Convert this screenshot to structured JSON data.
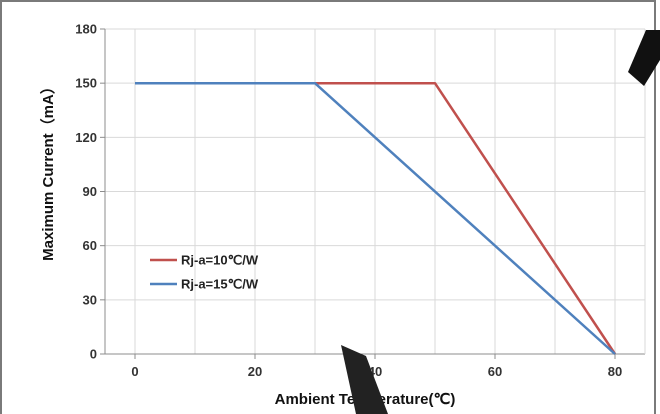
{
  "chart_data": {
    "type": "line",
    "title": "",
    "xlabel": "Ambient Temperature(℃)",
    "ylabel": "Maximum Current（mA）",
    "xlim": [
      -5,
      85
    ],
    "ylim": [
      0,
      180
    ],
    "x_ticks": [
      0,
      20,
      40,
      60,
      80
    ],
    "y_ticks": [
      0,
      30,
      60,
      90,
      120,
      150,
      180
    ],
    "x_tick_labels": [
      "0",
      "20",
      "40",
      "60",
      "80"
    ],
    "y_tick_labels": [
      "0",
      "30",
      "60",
      "90",
      "120",
      "150",
      "180"
    ],
    "grid": true,
    "legend_position": "left",
    "series": [
      {
        "name": "Rj-a=10℃/W",
        "color": "#c0504d",
        "x": [
          0,
          50,
          80
        ],
        "y": [
          150,
          150,
          0
        ]
      },
      {
        "name": "Rj-a=15℃/W",
        "color": "#4f81bd",
        "x": [
          0,
          30,
          80
        ],
        "y": [
          150,
          150,
          0
        ]
      }
    ]
  }
}
